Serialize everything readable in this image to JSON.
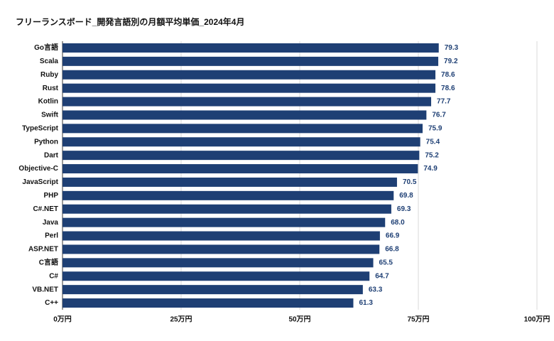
{
  "chart_data": {
    "type": "hbar",
    "title": "フリーランスボード_開発言語別の月額平均単価_2024年4月",
    "categories": [
      "Go言語",
      "Scala",
      "Ruby",
      "Rust",
      "Kotlin",
      "Swift",
      "TypeScript",
      "Python",
      "Dart",
      "Objective-C",
      "JavaScript",
      "PHP",
      "C#.NET",
      "Java",
      "Perl",
      "ASP.NET",
      "C言語",
      "C#",
      "VB.NET",
      "C++"
    ],
    "values": [
      79.3,
      79.2,
      78.6,
      78.6,
      77.7,
      76.7,
      75.9,
      75.4,
      75.2,
      74.9,
      70.5,
      69.8,
      69.3,
      68.0,
      66.9,
      66.8,
      65.5,
      64.7,
      63.3,
      61.3
    ],
    "value_labels": [
      "79.3",
      "79.2",
      "78.6",
      "78.6",
      "77.7",
      "76.7",
      "75.9",
      "75.4",
      "75.2",
      "74.9",
      "70.5",
      "69.8",
      "69.3",
      "68.0",
      "66.9",
      "66.8",
      "65.5",
      "64.7",
      "63.3",
      "61.3"
    ],
    "color": "#1e3f74",
    "xlim": [
      0,
      100
    ],
    "xticks": [
      {
        "value": 0,
        "label": "0万円"
      },
      {
        "value": 25,
        "label": "25万円"
      },
      {
        "value": 50,
        "label": "50万円"
      },
      {
        "value": 75,
        "label": "75万円"
      },
      {
        "value": 100,
        "label": "100万円"
      }
    ],
    "grid": true
  }
}
